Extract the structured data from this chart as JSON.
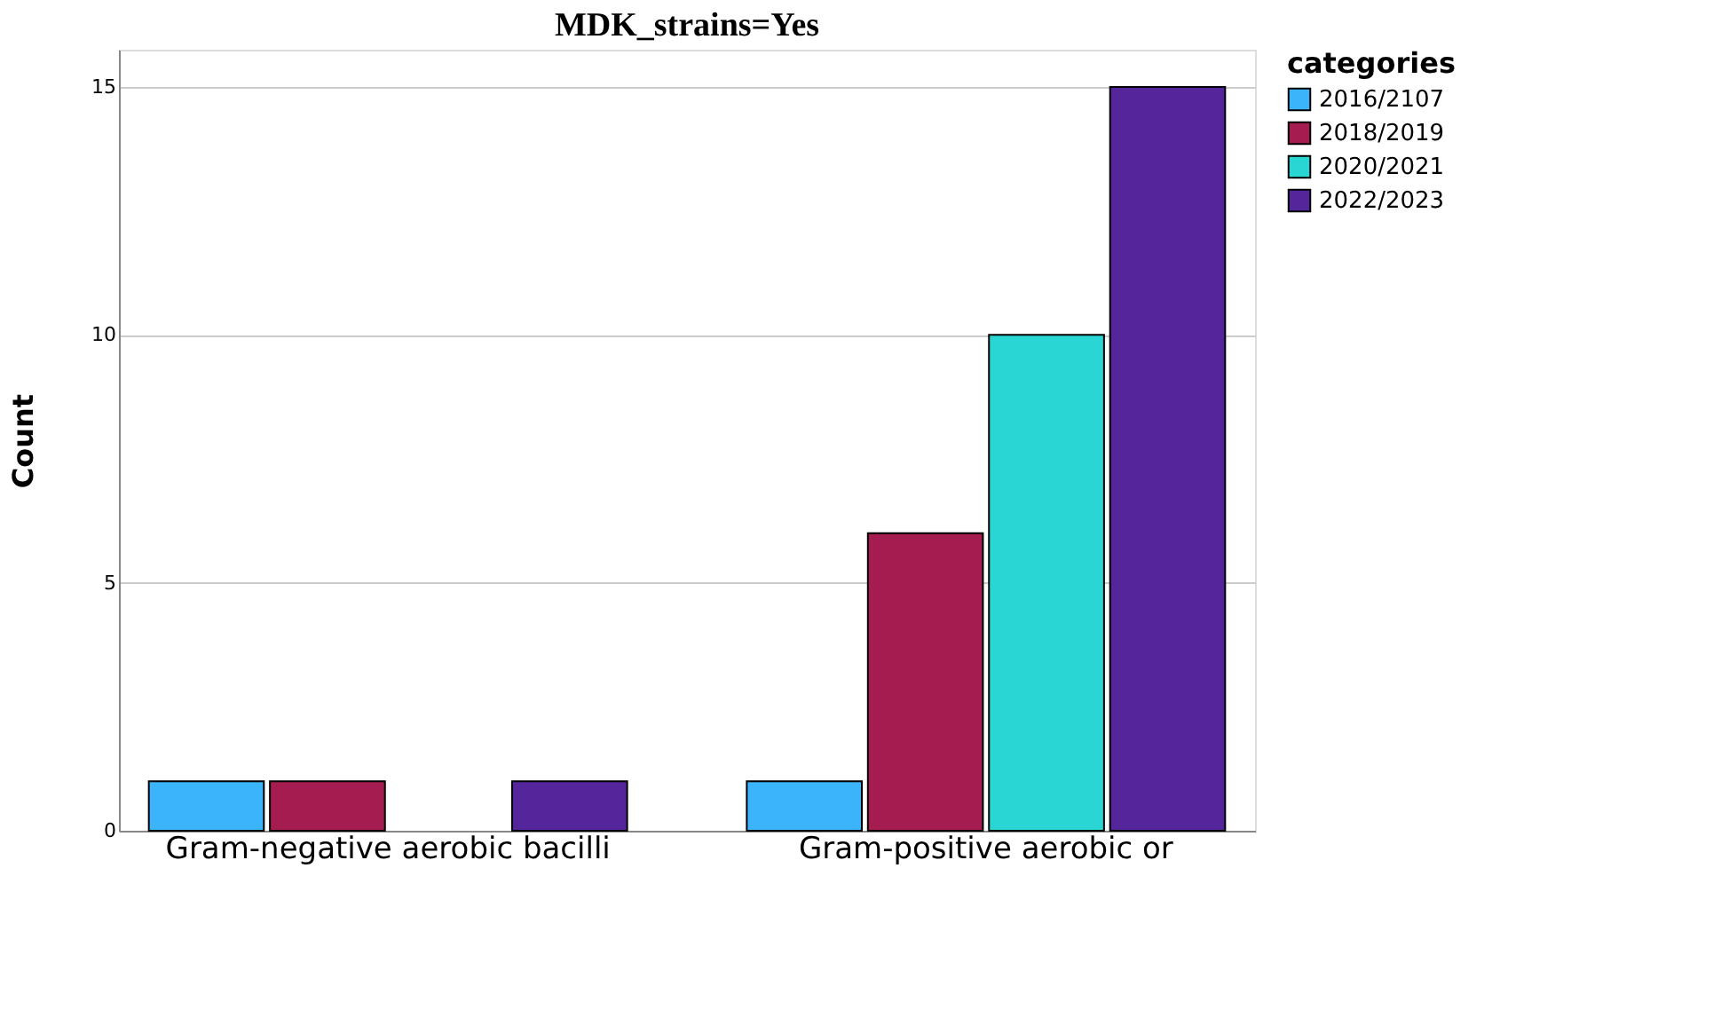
{
  "chart_data": {
    "type": "bar",
    "title": "MDK_strains=Yes",
    "ylabel": "Count",
    "legend_title": "categories",
    "categories": [
      "Gram-negative aerobic bacilli",
      "Gram-positive aerobic or"
    ],
    "series": [
      {
        "name": "2016/2107",
        "color": "#3bb4fb",
        "values": [
          1,
          1
        ]
      },
      {
        "name": "2018/2019",
        "color": "#a51d50",
        "values": [
          1,
          6
        ]
      },
      {
        "name": "2020/2021",
        "color": "#2ad6d3",
        "values": [
          null,
          10
        ]
      },
      {
        "name": "2022/2023",
        "color": "#55269b",
        "values": [
          1,
          15
        ]
      }
    ],
    "ylim": [
      0,
      15.75
    ],
    "yticks": [
      0,
      5,
      10,
      15
    ],
    "grid": "y",
    "legend": "top right"
  }
}
